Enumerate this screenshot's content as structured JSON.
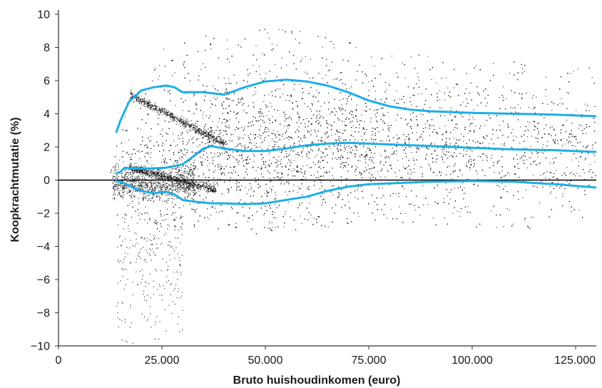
{
  "chart_data": {
    "type": "scatter",
    "title": "",
    "xlabel": "Bruto huishoudinkomen (euro)",
    "ylabel": "Koopkrachtmutatie (%)",
    "xlim": [
      0,
      130000
    ],
    "ylim": [
      -10,
      10
    ],
    "x_ticks": [
      0,
      25000,
      50000,
      75000,
      100000,
      125000
    ],
    "x_tick_labels": [
      "0",
      "25.000",
      "50.000",
      "75.000",
      "100.000",
      "125.000"
    ],
    "y_ticks": [
      -10,
      -8,
      -6,
      -4,
      -2,
      0,
      2,
      4,
      6,
      8,
      10
    ],
    "y_tick_labels": [
      "−10",
      "−8",
      "−6",
      "−4",
      "−2",
      "0",
      "2",
      "4",
      "6",
      "8",
      "10"
    ],
    "grid": false,
    "legend": "none",
    "colors": {
      "points": "#1a1a1a",
      "percentile_lines": "#1eaee6",
      "zero_line": "#000000"
    },
    "zero_line": {
      "y": 0
    },
    "scatter_density": {
      "description_free": true,
      "cloud": [
        {
          "x": 13000,
          "y_low": -0.6,
          "y_high": 1.2,
          "weight": 3
        },
        {
          "x": 16000,
          "y_low": -1.5,
          "y_high": 4.5,
          "weight": 6
        },
        {
          "x": 20000,
          "y_low": -3.0,
          "y_high": 6.8,
          "weight": 10
        },
        {
          "x": 25000,
          "y_low": -3.0,
          "y_high": 8.0,
          "weight": 12
        },
        {
          "x": 30000,
          "y_low": -3.0,
          "y_high": 8.5,
          "weight": 14
        },
        {
          "x": 40000,
          "y_low": -3.0,
          "y_high": 9.0,
          "weight": 16
        },
        {
          "x": 50000,
          "y_low": -3.2,
          "y_high": 9.2,
          "weight": 16
        },
        {
          "x": 60000,
          "y_low": -3.0,
          "y_high": 9.0,
          "weight": 15
        },
        {
          "x": 75000,
          "y_low": -2.6,
          "y_high": 8.0,
          "weight": 12
        },
        {
          "x": 100000,
          "y_low": -2.8,
          "y_high": 7.2,
          "weight": 8
        },
        {
          "x": 125000,
          "y_low": -3.0,
          "y_high": 7.0,
          "weight": 6
        },
        {
          "x": 130000,
          "y_low": -3.0,
          "y_high": 7.0,
          "weight": 5
        }
      ],
      "low_tail": {
        "x_range": [
          14000,
          30000
        ],
        "y_range": [
          -10,
          -2
        ]
      },
      "diagonal_streaks": [
        {
          "from": [
            17000,
            5.2
          ],
          "to": [
            40000,
            2.2
          ]
        },
        {
          "from": [
            17000,
            0.8
          ],
          "to": [
            38000,
            -0.6
          ]
        }
      ]
    },
    "series": [
      {
        "name": "",
        "role": "upper",
        "x": [
          14000,
          15000,
          17000,
          20000,
          23000,
          26000,
          28000,
          30000,
          35000,
          40000,
          45000,
          50000,
          55000,
          60000,
          65000,
          70000,
          75000,
          80000,
          85000,
          90000,
          100000,
          110000,
          120000,
          130000
        ],
        "y": [
          2.9,
          3.6,
          4.7,
          5.4,
          5.6,
          5.7,
          5.6,
          5.3,
          5.3,
          5.15,
          5.6,
          5.95,
          6.05,
          5.95,
          5.7,
          5.3,
          4.8,
          4.45,
          4.25,
          4.15,
          4.05,
          4.0,
          3.95,
          3.85
        ]
      },
      {
        "name": "",
        "role": "median",
        "x": [
          14000,
          15000,
          16000,
          18000,
          22000,
          26000,
          30000,
          33000,
          35000,
          37000,
          40000,
          45000,
          50000,
          55000,
          60000,
          65000,
          70000,
          75000,
          80000,
          90000,
          100000,
          110000,
          120000,
          130000
        ],
        "y": [
          0.4,
          0.5,
          0.75,
          0.7,
          0.7,
          0.75,
          0.95,
          1.5,
          1.9,
          2.05,
          1.9,
          1.75,
          1.75,
          1.9,
          2.1,
          2.2,
          2.25,
          2.2,
          2.15,
          2.05,
          1.95,
          1.85,
          1.8,
          1.7
        ]
      },
      {
        "name": "",
        "role": "lower",
        "x": [
          14000,
          16000,
          18000,
          20000,
          23000,
          26000,
          28000,
          30000,
          33000,
          37000,
          40000,
          45000,
          50000,
          55000,
          60000,
          65000,
          70000,
          75000,
          80000,
          90000,
          100000,
          110000,
          120000,
          130000
        ],
        "y": [
          -0.05,
          -0.2,
          -0.45,
          -0.65,
          -0.8,
          -0.7,
          -0.85,
          -1.2,
          -1.3,
          -1.4,
          -1.4,
          -1.45,
          -1.4,
          -1.2,
          -1.0,
          -0.65,
          -0.4,
          -0.25,
          -0.2,
          -0.1,
          -0.05,
          -0.1,
          -0.25,
          -0.45
        ]
      }
    ]
  }
}
